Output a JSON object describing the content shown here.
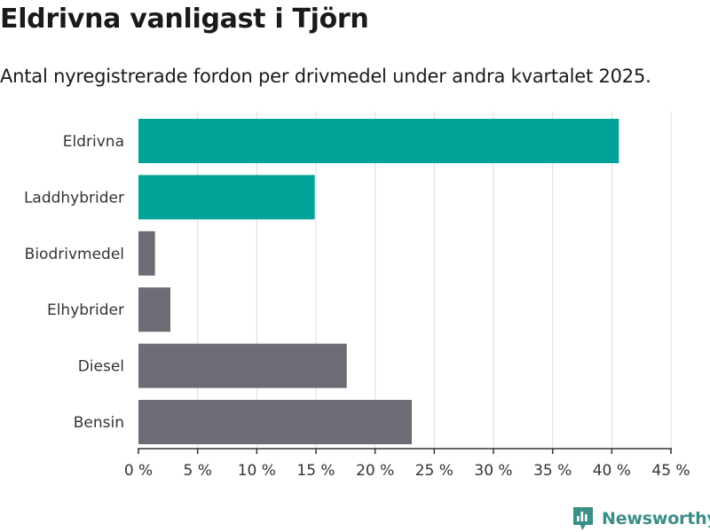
{
  "title": "Eldrivna vanligast i Tjörn",
  "subtitle": "Antal nyregistrerade fordon per drivmedel under andra kvartalet 2025.",
  "brand": {
    "name": "Newsworthy",
    "color": "#3a8f86"
  },
  "colors": {
    "highlight": "#00a398",
    "default": "#6d6c74",
    "grid": "#dcdcdc",
    "axis": "#333333"
  },
  "chart_data": {
    "type": "bar",
    "orientation": "horizontal",
    "categories": [
      "Eldrivna",
      "Laddhybrider",
      "Biodrivmedel",
      "Elhybrider",
      "Diesel",
      "Bensin"
    ],
    "values": [
      40.6,
      14.9,
      1.4,
      2.7,
      17.6,
      23.1
    ],
    "highlighted": [
      "Eldrivna",
      "Laddhybrider"
    ],
    "xlim": [
      0,
      45
    ],
    "ticks": [
      0,
      5,
      10,
      15,
      20,
      25,
      30,
      35,
      40,
      45
    ],
    "tick_labels": [
      "0 %",
      "5 %",
      "10 %",
      "15 %",
      "20 %",
      "25 %",
      "30 %",
      "35 %",
      "40 %",
      "45 %"
    ],
    "grid": true
  }
}
